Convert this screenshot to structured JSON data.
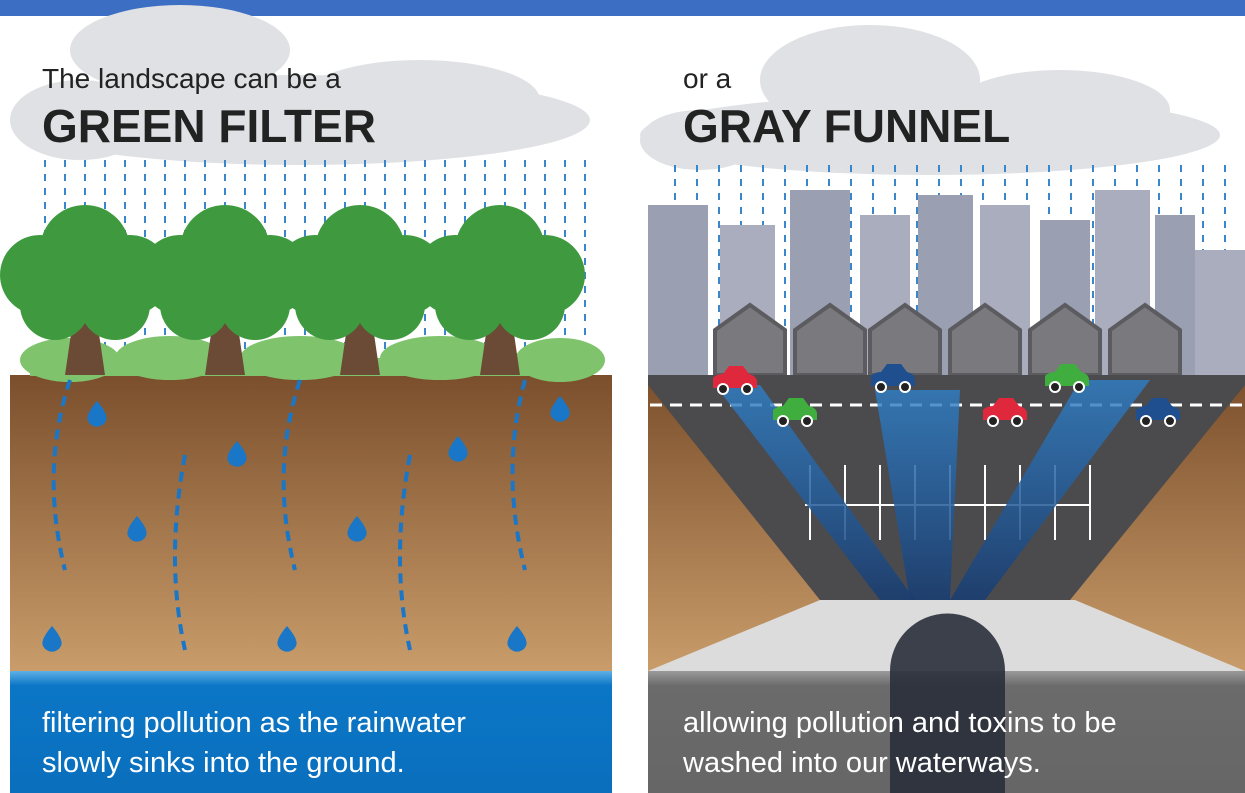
{
  "left": {
    "intro": "The landscape can be a",
    "title": "GREEN FILTER",
    "caption": [
      "filtering pollution as the rainwater",
      "slowly sinks into the ground."
    ]
  },
  "right": {
    "intro": "or a",
    "title": "GRAY FUNNEL",
    "caption": [
      "allowing pollution and toxins to be",
      "washed into our waterways."
    ]
  }
}
